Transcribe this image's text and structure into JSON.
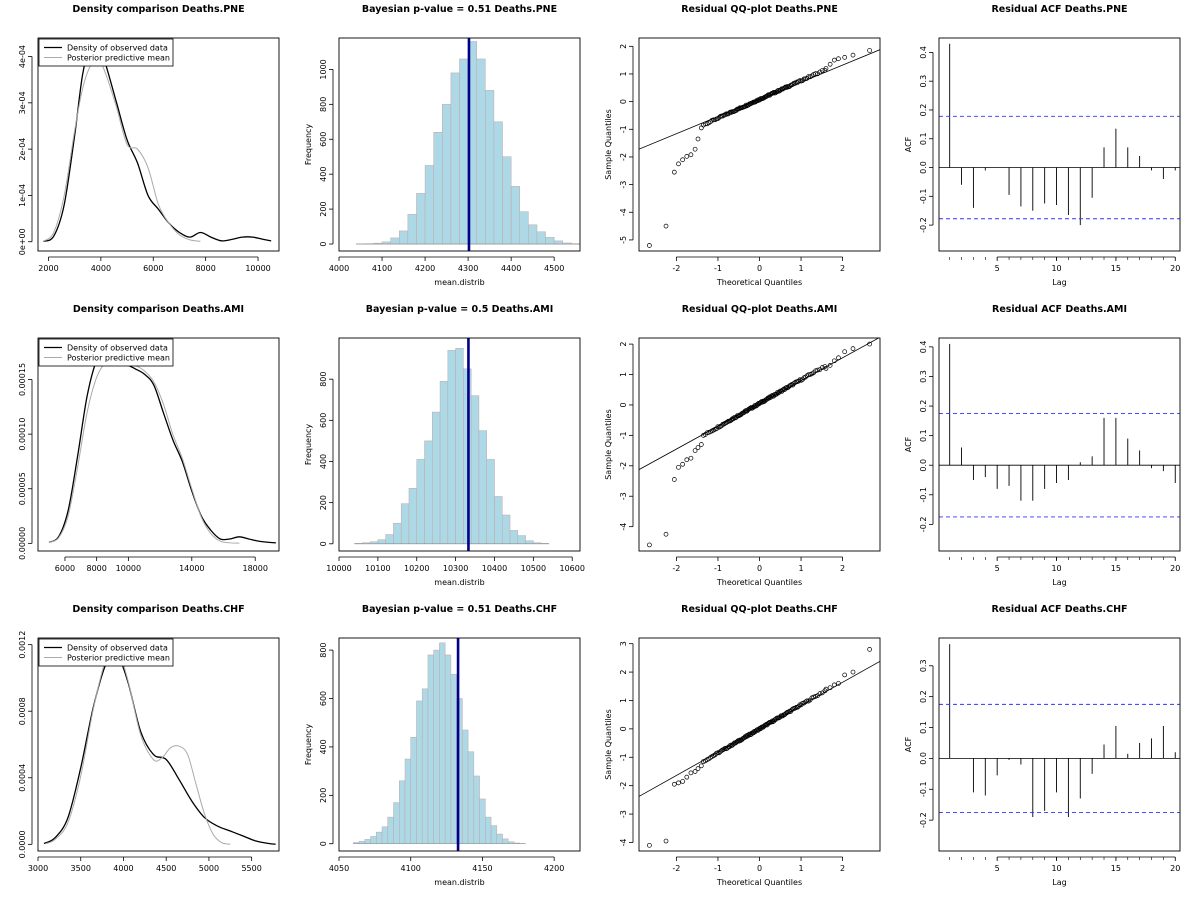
{
  "colors": {
    "observed": "#000000",
    "predictive": "#aaaaaa",
    "hist_fill": "#add8e6",
    "hist_edge": "#c0a8a8",
    "pvalue_line": "#00008b",
    "ci_line": "#3333ff"
  },
  "legend": {
    "observed": "Density of observed data",
    "predictive": "Posterior predictive mean"
  },
  "chart_data": [
    {
      "type": "line",
      "kind": "density",
      "title": "Density comparison Deaths.PNE",
      "xlabel": "",
      "ylabel": "",
      "xlim": [
        1600,
        10800
      ],
      "ylim": [
        -2e-05,
        0.00044
      ],
      "xticks": [
        2000,
        4000,
        6000,
        8000,
        10000
      ],
      "xtick_labels": [
        "2000",
        "4000",
        "6000",
        "8000",
        "10000"
      ],
      "yticks": [
        0,
        0.0001,
        0.0002,
        0.0003,
        0.0004
      ],
      "ytick_labels": [
        "0e+00",
        "1e-04",
        "2e-04",
        "3e-04",
        "4e-04"
      ],
      "series": [
        {
          "name": "Density of observed data",
          "x": [
            1800,
            2200,
            2600,
            3000,
            3300,
            3600,
            3900,
            4200,
            4600,
            5000,
            5400,
            5800,
            6200,
            6600,
            7000,
            7400,
            7800,
            8200,
            8600,
            9000,
            9400,
            9800,
            10200,
            10500
          ],
          "y": [
            1e-06,
            1.2e-05,
            8e-05,
            0.00023,
            0.00036,
            0.000425,
            0.00043,
            0.00038,
            0.0003,
            0.00022,
            0.00017,
            0.0001,
            7e-05,
            4e-05,
            2e-05,
            1e-05,
            2e-05,
            1e-05,
            2e-06,
            5e-06,
            1e-05,
            1e-05,
            5e-06,
            2e-06
          ]
        },
        {
          "name": "Posterior predictive mean",
          "x": [
            1800,
            2200,
            2600,
            3000,
            3300,
            3600,
            3900,
            4200,
            4600,
            5000,
            5400,
            5800,
            6200,
            6600,
            7000,
            7400,
            7800
          ],
          "y": [
            1e-06,
            2e-05,
            0.0001,
            0.00024,
            0.00033,
            0.00038,
            0.000395,
            0.00036,
            0.00029,
            0.00021,
            0.0002,
            0.00016,
            8e-05,
            4e-05,
            1.5e-05,
            4e-06,
            1e-06
          ]
        }
      ]
    },
    {
      "type": "bar",
      "kind": "hist",
      "title": "Bayesian p-value = 0.51 Deaths.PNE",
      "xlabel": "mean.distrib",
      "ylabel": "Frequency",
      "xlim": [
        4000,
        4560
      ],
      "ylim": [
        -40,
        1180
      ],
      "xticks": [
        4000,
        4100,
        4200,
        4300,
        4400,
        4500
      ],
      "xtick_labels": [
        "4000",
        "4100",
        "4200",
        "4300",
        "4400",
        "4500"
      ],
      "yticks": [
        0,
        200,
        400,
        600,
        800,
        1000
      ],
      "ytick_labels": [
        "0",
        "200",
        "400",
        "600",
        "800",
        "1000"
      ],
      "bin_start": 4040,
      "bin_width": 20,
      "counts": [
        1,
        2,
        5,
        12,
        35,
        75,
        170,
        290,
        450,
        640,
        800,
        980,
        1060,
        1160,
        1060,
        880,
        700,
        500,
        330,
        185,
        110,
        70,
        38,
        18,
        6,
        2
      ],
      "vline": 4302
    },
    {
      "type": "scatter",
      "kind": "qq",
      "title": "Residual QQ-plot Deaths.PNE",
      "xlabel": "Theoretical Quantiles",
      "ylabel": "Sample Quantiles",
      "xlim": [
        -2.9,
        2.9
      ],
      "ylim": [
        -5.4,
        2.3
      ],
      "xticks": [
        -2,
        -1,
        0,
        1,
        2
      ],
      "xtick_labels": [
        "-2",
        "-1",
        "0",
        "1",
        "2"
      ],
      "yticks": [
        -5,
        -4,
        -3,
        -2,
        -1,
        0,
        1,
        2
      ],
      "ytick_labels": [
        "-5",
        "-4",
        "-3",
        "-2",
        "-1",
        "0",
        "1",
        "2"
      ],
      "slope": 0.62,
      "intercept": 0.08,
      "n": 130,
      "sample_slope": 0.68,
      "outliers": [
        [
          -2.65,
          -5.2
        ],
        [
          -2.25,
          -4.5
        ],
        [
          -2.05,
          -2.55
        ],
        [
          -1.95,
          -2.25
        ],
        [
          -1.85,
          -2.1
        ],
        [
          -1.75,
          -1.98
        ],
        [
          -1.65,
          -1.92
        ],
        [
          -1.55,
          -1.72
        ],
        [
          -1.48,
          -1.35
        ],
        [
          -1.4,
          -0.95
        ]
      ],
      "upper": [
        [
          1.6,
          1.2
        ],
        [
          1.7,
          1.35
        ],
        [
          1.8,
          1.5
        ],
        [
          1.9,
          1.55
        ],
        [
          2.05,
          1.6
        ],
        [
          2.25,
          1.68
        ],
        [
          2.65,
          1.85
        ]
      ]
    },
    {
      "type": "bar",
      "kind": "acf",
      "title": "Residual ACF Deaths.PNE",
      "xlabel": "Lag",
      "ylabel": "ACF",
      "xlim": [
        0.1,
        20.4
      ],
      "ylim": [
        -0.29,
        0.45
      ],
      "xticks": [
        5,
        10,
        15,
        20
      ],
      "xtick_labels": [
        "5",
        "10",
        "15",
        "20"
      ],
      "yticks": [
        -0.2,
        -0.1,
        0,
        0.1,
        0.2,
        0.3,
        0.4
      ],
      "ytick_labels": [
        "-0.2",
        "-0.1",
        "0.0",
        "0.1",
        "0.2",
        "0.3",
        "0.4"
      ],
      "values": [
        0.43,
        -0.06,
        -0.14,
        -0.01,
        0,
        -0.095,
        -0.135,
        -0.15,
        -0.125,
        -0.13,
        -0.165,
        -0.2,
        -0.105,
        0.07,
        0.135,
        0.07,
        0.04,
        -0.01,
        -0.04,
        -0.01
      ],
      "ci": 0.178
    },
    {
      "type": "line",
      "kind": "density",
      "title": "Density comparison Deaths.AMI",
      "xlabel": "",
      "ylabel": "",
      "xlim": [
        4300,
        19500
      ],
      "ylim": [
        -7e-06,
        0.000188
      ],
      "xticks": [
        6000,
        8000,
        10000,
        14000,
        18000
      ],
      "xtick_labels": [
        "6000",
        "8000",
        "10000",
        "14000",
        "18000"
      ],
      "yticks": [
        0,
        5e-05,
        0.0001,
        0.00015
      ],
      "ytick_labels": [
        "0.00000",
        "0.00005",
        "0.00010",
        "0.00015"
      ],
      "series": [
        {
          "name": "Density of observed data",
          "x": [
            5000,
            5600,
            6200,
            6800,
            7400,
            8000,
            8600,
            9200,
            9800,
            10400,
            11000,
            11600,
            12200,
            12800,
            13400,
            14000,
            14600,
            15200,
            15800,
            16400,
            17000,
            17600,
            18200,
            18800,
            19300
          ],
          "y": [
            1e-06,
            6e-06,
            3e-05,
            8e-05,
            0.000135,
            0.000168,
            0.000182,
            0.000175,
            0.000165,
            0.00016,
            0.000155,
            0.000145,
            0.00012,
            9.5e-05,
            7.5e-05,
            4.8e-05,
            2.5e-05,
            1.2e-05,
            4e-06,
            4e-06,
            6e-06,
            4e-06,
            2e-06,
            1e-06,
            5e-07
          ]
        },
        {
          "name": "Posterior predictive mean",
          "x": [
            5000,
            5600,
            6200,
            6800,
            7400,
            8000,
            8600,
            9200,
            9800,
            10400,
            11000,
            11600,
            12200,
            12800,
            13400,
            14000,
            14600,
            15200,
            15800,
            16400,
            17000
          ],
          "y": [
            1e-06,
            5e-06,
            2.5e-05,
            7e-05,
            0.00012,
            0.000152,
            0.000166,
            0.000168,
            0.000165,
            0.000163,
            0.000158,
            0.000148,
            0.000128,
            0.0001,
            7.8e-05,
            5e-05,
            2.4e-05,
            9e-06,
            2e-06,
            5e-07,
            2e-07
          ]
        }
      ]
    },
    {
      "type": "bar",
      "kind": "hist",
      "title": "Bayesian p-value = 0.5 Deaths.AMI",
      "xlabel": "mean.distrib",
      "ylabel": "Frequency",
      "xlim": [
        10000,
        10620
      ],
      "ylim": [
        -35,
        1000
      ],
      "xticks": [
        10000,
        10100,
        10200,
        10300,
        10400,
        10500,
        10600
      ],
      "xtick_labels": [
        "10000",
        "10100",
        "10200",
        "10300",
        "10400",
        "10500",
        "10600"
      ],
      "yticks": [
        0,
        200,
        400,
        600,
        800
      ],
      "ytick_labels": [
        "0",
        "200",
        "400",
        "600",
        "800"
      ],
      "bin_start": 10040,
      "bin_width": 20,
      "counts": [
        2,
        5,
        10,
        20,
        45,
        100,
        195,
        270,
        410,
        500,
        640,
        790,
        940,
        950,
        850,
        720,
        550,
        410,
        230,
        140,
        65,
        40,
        15,
        5,
        2
      ],
      "vline": 10333
    },
    {
      "type": "scatter",
      "kind": "qq",
      "title": "Residual QQ-plot Deaths.AMI",
      "xlabel": "Theoretical Quantiles",
      "ylabel": "Sample Quantiles",
      "xlim": [
        -2.9,
        2.9
      ],
      "ylim": [
        -4.8,
        2.2
      ],
      "xticks": [
        -2,
        -1,
        0,
        1,
        2
      ],
      "xtick_labels": [
        "-2",
        "-1",
        "0",
        "1",
        "2"
      ],
      "yticks": [
        -4,
        -3,
        -2,
        -1,
        0,
        1,
        2
      ],
      "ytick_labels": [
        "-4",
        "-3",
        "-2",
        "-1",
        "0",
        "1",
        "2"
      ],
      "slope": 0.75,
      "intercept": 0.05,
      "n": 130,
      "sample_slope": 0.78,
      "outliers": [
        [
          -2.65,
          -4.6
        ],
        [
          -2.25,
          -4.25
        ],
        [
          -2.05,
          -2.45
        ],
        [
          -1.95,
          -2.05
        ],
        [
          -1.85,
          -1.95
        ],
        [
          -1.75,
          -1.8
        ],
        [
          -1.65,
          -1.75
        ],
        [
          -1.55,
          -1.5
        ],
        [
          -1.48,
          -1.4
        ],
        [
          -1.4,
          -1.3
        ]
      ],
      "upper": [
        [
          1.6,
          1.2
        ],
        [
          1.7,
          1.3
        ],
        [
          1.8,
          1.45
        ],
        [
          1.9,
          1.55
        ],
        [
          2.05,
          1.75
        ],
        [
          2.25,
          1.85
        ],
        [
          2.65,
          2.0
        ]
      ]
    },
    {
      "type": "bar",
      "kind": "acf",
      "title": "Residual ACF Deaths.AMI",
      "xlabel": "Lag",
      "ylabel": "ACF",
      "xlim": [
        0.1,
        20.4
      ],
      "ylim": [
        -0.29,
        0.43
      ],
      "xticks": [
        5,
        10,
        15,
        20
      ],
      "xtick_labels": [
        "5",
        "10",
        "15",
        "20"
      ],
      "yticks": [
        -0.2,
        -0.1,
        0,
        0.1,
        0.2,
        0.3,
        0.4
      ],
      "ytick_labels": [
        "-0.2",
        "-0.1",
        "0.0",
        "0.1",
        "0.2",
        "0.3",
        "0.4"
      ],
      "values": [
        0.41,
        0.06,
        -0.05,
        -0.04,
        -0.08,
        -0.07,
        -0.12,
        -0.12,
        -0.08,
        -0.06,
        -0.05,
        0.01,
        0.03,
        0.16,
        0.16,
        0.09,
        0.05,
        -0.01,
        -0.02,
        -0.06
      ],
      "ci": 0.175
    },
    {
      "type": "line",
      "kind": "density",
      "title": "Density comparison Deaths.CHF",
      "xlabel": "",
      "ylabel": "",
      "xlim": [
        3000,
        5820
      ],
      "ylim": [
        -4e-05,
        0.00124
      ],
      "xticks": [
        3000,
        3500,
        4000,
        4500,
        5000,
        5500
      ],
      "xtick_labels": [
        "3000",
        "3500",
        "4000",
        "4500",
        "5000",
        "5500"
      ],
      "yticks": [
        0,
        0.0004,
        0.0008,
        0.0012
      ],
      "ytick_labels": [
        "0.0000",
        "0.0004",
        "0.0008",
        "0.0012"
      ],
      "series": [
        {
          "name": "Density of observed data",
          "x": [
            3070,
            3200,
            3350,
            3500,
            3650,
            3800,
            3920,
            4050,
            4200,
            4350,
            4500,
            4650,
            4800,
            4950,
            5100,
            5250,
            5400,
            5550,
            5700,
            5780
          ],
          "y": [
            5e-06,
            4e-05,
            0.00016,
            0.00046,
            0.00083,
            0.00109,
            0.00114,
            0.00098,
            0.00068,
            0.00054,
            0.00051,
            0.00039,
            0.00026,
            0.00016,
            0.00011,
            8e-05,
            5e-05,
            2e-05,
            5e-06,
            1e-06
          ]
        },
        {
          "name": "Posterior predictive mean",
          "x": [
            3100,
            3200,
            3350,
            3500,
            3650,
            3800,
            3920,
            4050,
            4200,
            4350,
            4450,
            4550,
            4650,
            4750,
            4850,
            4950,
            5050,
            5150,
            5250
          ],
          "y": [
            5e-06,
            3e-05,
            0.00013,
            0.00041,
            0.00082,
            0.00112,
            0.00118,
            0.00099,
            0.00066,
            0.00051,
            0.00052,
            0.00058,
            0.00059,
            0.00054,
            0.00036,
            0.00018,
            6e-05,
            1e-05,
            1e-06
          ]
        }
      ]
    },
    {
      "type": "bar",
      "kind": "hist",
      "title": "Bayesian p-value = 0.51 Deaths.CHF",
      "xlabel": "mean.distrib",
      "ylabel": "Frequency",
      "xlim": [
        4050,
        4218
      ],
      "ylim": [
        -30,
        850
      ],
      "xticks": [
        4050,
        4100,
        4150,
        4200
      ],
      "xtick_labels": [
        "4050",
        "4100",
        "4150",
        "4200"
      ],
      "yticks": [
        0,
        200,
        400,
        600,
        800
      ],
      "ytick_labels": [
        "0",
        "200",
        "400",
        "600",
        "800"
      ],
      "bin_start": 4060,
      "bin_width": 4,
      "counts": [
        5,
        10,
        18,
        30,
        48,
        70,
        110,
        170,
        260,
        350,
        440,
        590,
        640,
        780,
        800,
        830,
        780,
        700,
        600,
        470,
        380,
        280,
        185,
        110,
        75,
        40,
        20,
        8,
        3,
        1
      ],
      "vline": 4133
    },
    {
      "type": "scatter",
      "kind": "qq",
      "title": "Residual QQ-plot Deaths.CHF",
      "xlabel": "Theoretical Quantiles",
      "ylabel": "Sample Quantiles",
      "xlim": [
        -2.9,
        2.9
      ],
      "ylim": [
        -4.3,
        3.2
      ],
      "xticks": [
        -2,
        -1,
        0,
        1,
        2
      ],
      "xtick_labels": [
        "-2",
        "-1",
        "0",
        "1",
        "2"
      ],
      "yticks": [
        -4,
        -3,
        -2,
        -1,
        0,
        1,
        2,
        3
      ],
      "ytick_labels": [
        "-4",
        "-3",
        "-2",
        "-1",
        "0",
        "1",
        "2",
        "3"
      ],
      "slope": 0.82,
      "intercept": 0.0,
      "n": 130,
      "sample_slope": 0.85,
      "outliers": [
        [
          -2.65,
          -4.1
        ],
        [
          -2.25,
          -3.95
        ],
        [
          -2.05,
          -1.95
        ],
        [
          -1.95,
          -1.9
        ],
        [
          -1.85,
          -1.85
        ],
        [
          -1.75,
          -1.7
        ],
        [
          -1.65,
          -1.55
        ],
        [
          -1.55,
          -1.5
        ],
        [
          -1.48,
          -1.4
        ],
        [
          -1.4,
          -1.3
        ]
      ],
      "upper": [
        [
          1.6,
          1.4
        ],
        [
          1.7,
          1.45
        ],
        [
          1.8,
          1.55
        ],
        [
          1.9,
          1.6
        ],
        [
          2.05,
          1.9
        ],
        [
          2.25,
          2.0
        ],
        [
          2.65,
          2.8
        ]
      ]
    },
    {
      "type": "bar",
      "kind": "acf",
      "title": "Residual ACF Deaths.CHF",
      "xlabel": "Lag",
      "ylabel": "ACF",
      "xlim": [
        0.1,
        20.4
      ],
      "ylim": [
        -0.3,
        0.39
      ],
      "xticks": [
        5,
        10,
        15,
        20
      ],
      "xtick_labels": [
        "5",
        "10",
        "15",
        "20"
      ],
      "yticks": [
        -0.2,
        -0.1,
        0,
        0.1,
        0.2,
        0.3
      ],
      "ytick_labels": [
        "-0.2",
        "-0.1",
        "0.0",
        "0.1",
        "0.2",
        "0.3"
      ],
      "values": [
        0.37,
        0,
        -0.11,
        -0.12,
        -0.055,
        -0.005,
        -0.02,
        -0.19,
        -0.17,
        -0.11,
        -0.19,
        -0.13,
        -0.05,
        0.045,
        0.105,
        0.015,
        0.05,
        0.065,
        0.105,
        0.02
      ],
      "ci": 0.175
    }
  ]
}
